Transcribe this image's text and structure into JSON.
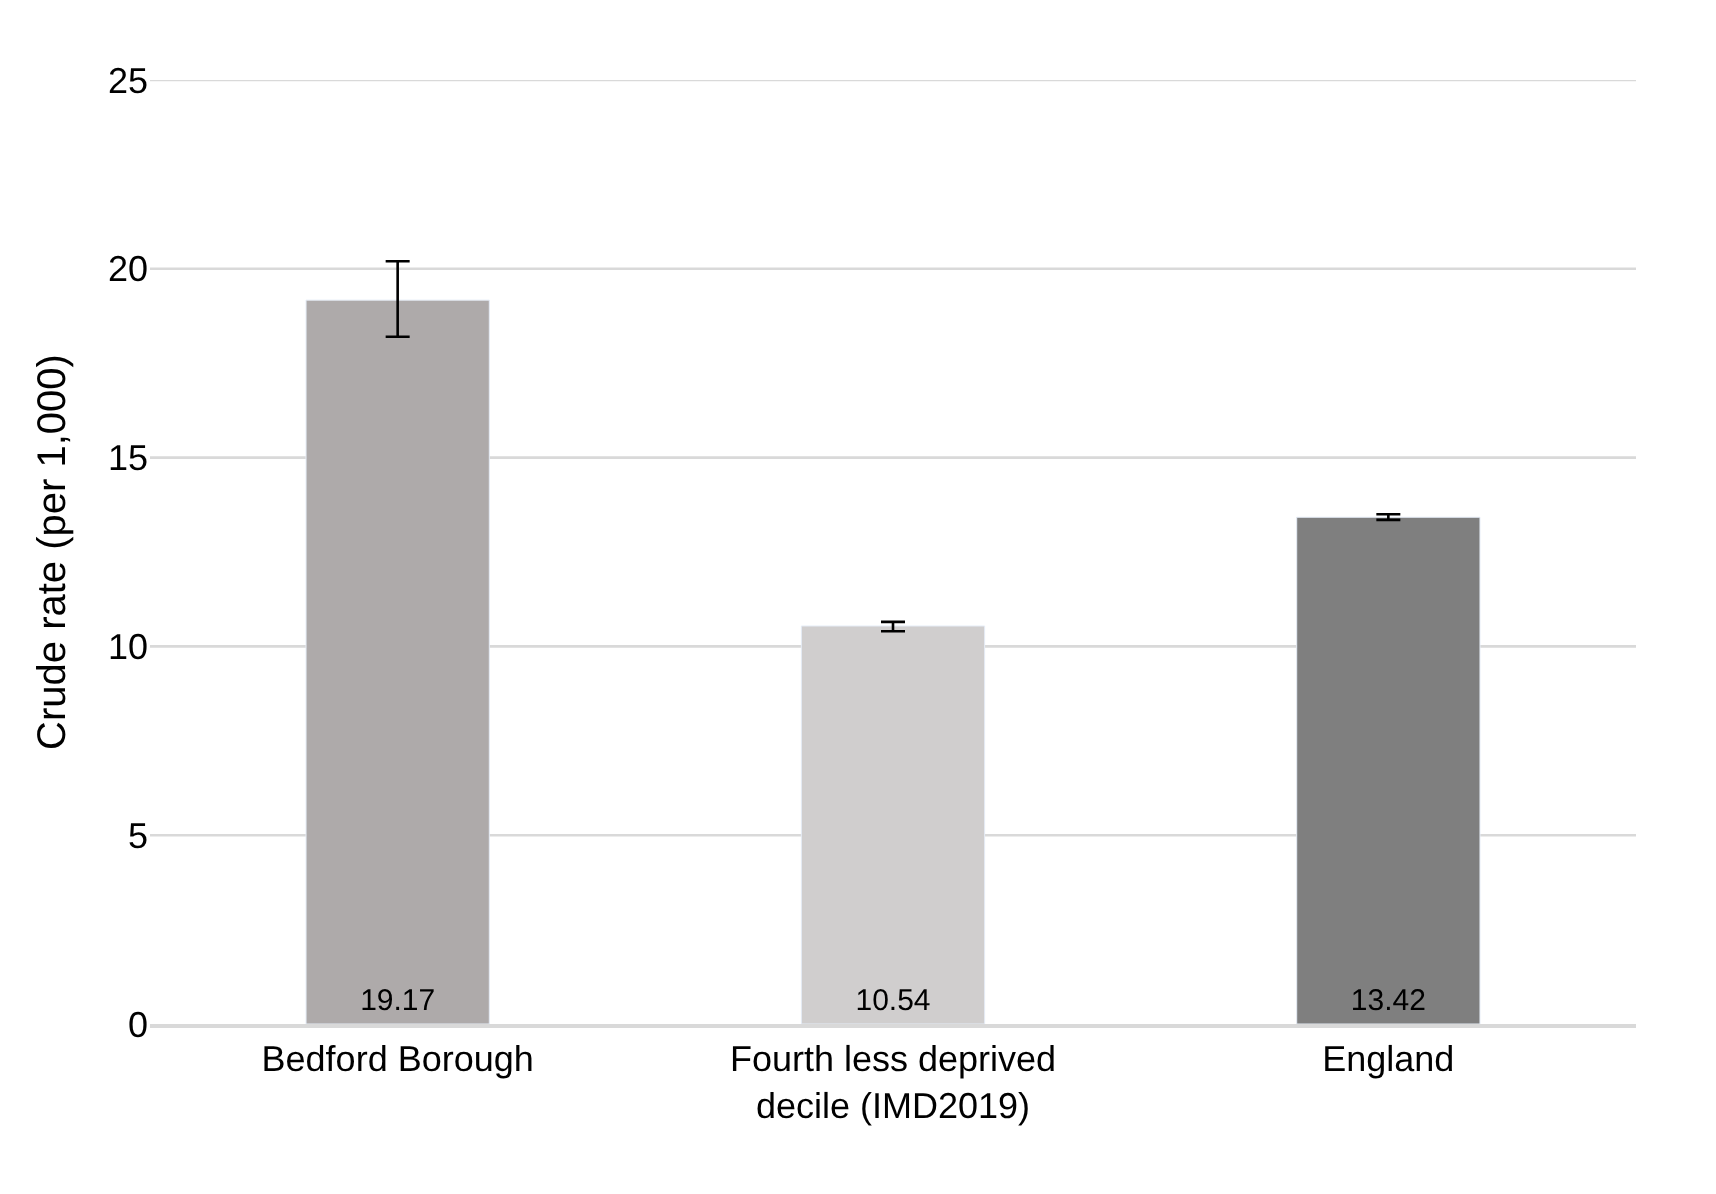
{
  "chart_data": {
    "type": "bar",
    "ylabel": "Crude rate (per 1,000)",
    "categories": [
      "Bedford Borough",
      "Fourth less deprived decile (IMD2019)",
      "England"
    ],
    "values": [
      19.17,
      10.54,
      13.42
    ],
    "colors": [
      "#aeaaaa",
      "#d0cece",
      "#7f7f7f"
    ],
    "errors": [
      [
        18.2,
        20.2
      ],
      [
        10.4,
        10.65
      ],
      [
        13.35,
        13.5
      ]
    ],
    "ylim": [
      0,
      25
    ],
    "yticks": [
      0,
      5,
      10,
      15,
      20,
      25
    ],
    "grid": "y",
    "data_labels": true
  }
}
